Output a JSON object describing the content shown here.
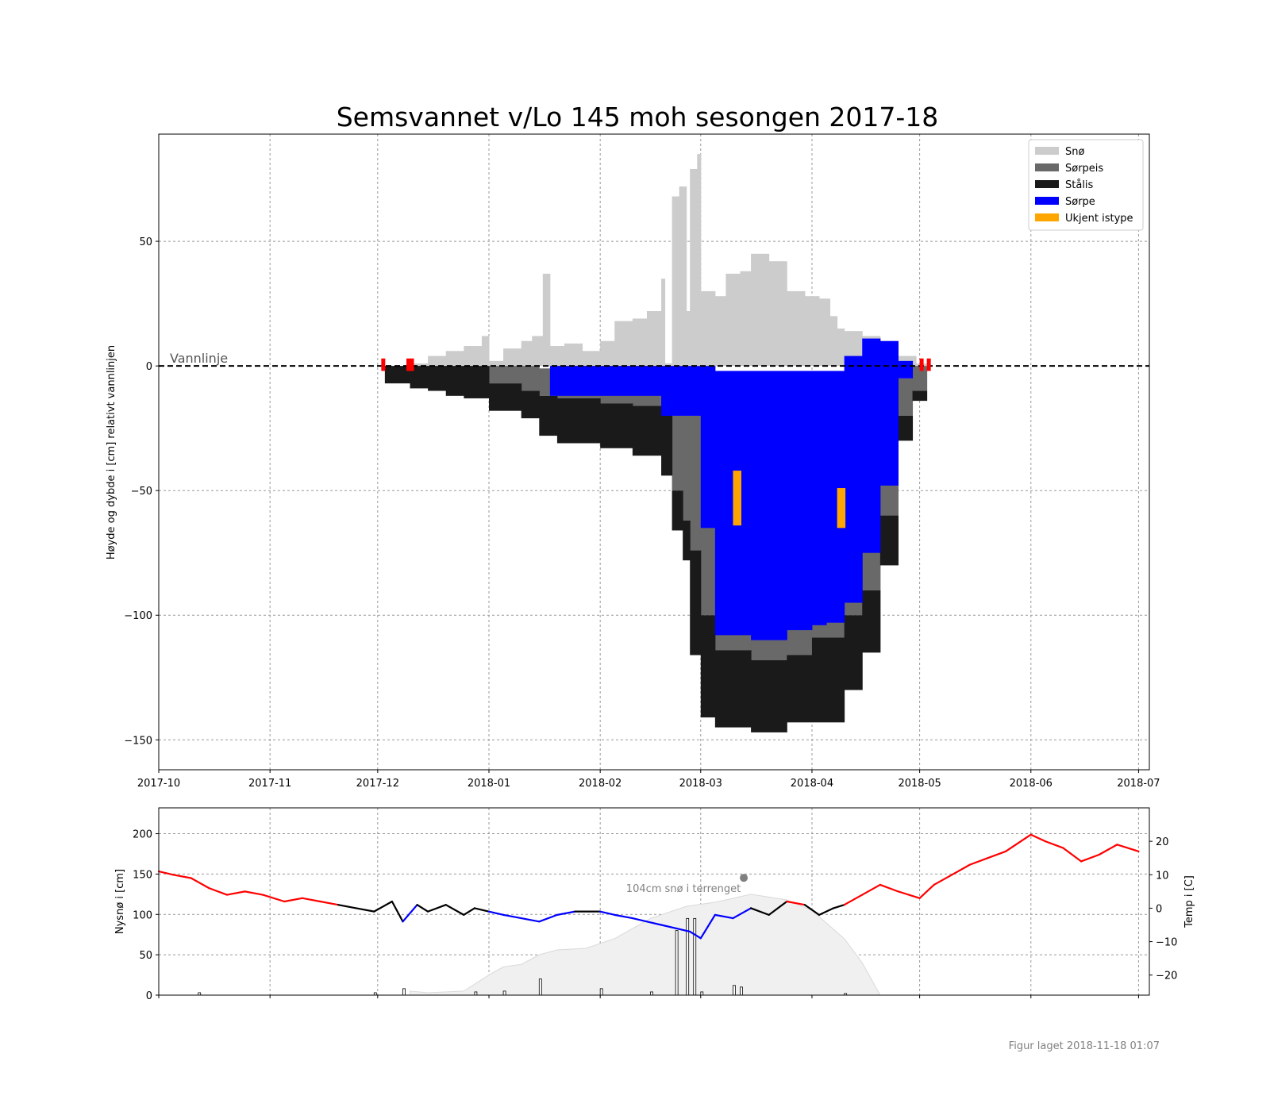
{
  "chart_data": [
    {
      "type": "bar",
      "title": "Semsvannet v/Lo 145 moh sesongen 2017-18",
      "ylabel": "Høyde og dybde i [cm] relativt vannlinjen",
      "xlabel": "",
      "x_ticks": [
        "2017-10",
        "2017-11",
        "2017-12",
        "2018-01",
        "2018-02",
        "2018-03",
        "2018-04",
        "2018-05",
        "2018-06",
        "2018-07"
      ],
      "y_ticks": [
        50,
        0,
        -50,
        -100,
        -150
      ],
      "xlim": [
        "2017-10-01",
        "2018-07-04"
      ],
      "ylim": [
        -162,
        93
      ],
      "grid": true,
      "legend_position": "top-right",
      "legend": [
        {
          "name": "Snø",
          "color": "#cccccc"
        },
        {
          "name": "Sørpeis",
          "color": "#696969"
        },
        {
          "name": "Stålis",
          "color": "#1a1a1a"
        },
        {
          "name": "Sørpe",
          "color": "#0000ff"
        },
        {
          "name": "Ukjent istype",
          "color": "#ffa500"
        }
      ],
      "annotations": {
        "waterline_label": "Vannlinje",
        "red_markers": [
          "2017-12-02",
          "2017-12-09",
          "2017-12-10",
          "2018-05-01",
          "2018-05-03"
        ]
      },
      "series": [
        {
          "name": "Snø",
          "points": [
            [
              "2017-12-03",
              0,
              0
            ],
            [
              "2017-12-10",
              0,
              1
            ],
            [
              "2017-12-15",
              0,
              4
            ],
            [
              "2017-12-20",
              0,
              6
            ],
            [
              "2017-12-25",
              0,
              8
            ],
            [
              "2017-12-30",
              0,
              12
            ],
            [
              "2018-01-01",
              0,
              2
            ],
            [
              "2018-01-05",
              0,
              7
            ],
            [
              "2018-01-10",
              0,
              10
            ],
            [
              "2018-01-13",
              0,
              12
            ],
            [
              "2018-01-15",
              0,
              12
            ],
            [
              "2018-01-16",
              0,
              37
            ],
            [
              "2018-01-18",
              0,
              8
            ],
            [
              "2018-01-22",
              0,
              9
            ],
            [
              "2018-01-27",
              0,
              6
            ],
            [
              "2018-02-01",
              0,
              10
            ],
            [
              "2018-02-05",
              0,
              18
            ],
            [
              "2018-02-10",
              0,
              19
            ],
            [
              "2018-02-14",
              0,
              22
            ],
            [
              "2018-02-18",
              0,
              35
            ],
            [
              "2018-02-19",
              0,
              1
            ],
            [
              "2018-02-21",
              0,
              68
            ],
            [
              "2018-02-23",
              0,
              72
            ],
            [
              "2018-02-25",
              0,
              22
            ],
            [
              "2018-02-26",
              0,
              79
            ],
            [
              "2018-02-28",
              0,
              85
            ],
            [
              "2018-03-01",
              0,
              30
            ],
            [
              "2018-03-05",
              0,
              28
            ],
            [
              "2018-03-08",
              0,
              37
            ],
            [
              "2018-03-12",
              0,
              38
            ],
            [
              "2018-03-15",
              0,
              45
            ],
            [
              "2018-03-20",
              0,
              42
            ],
            [
              "2018-03-25",
              0,
              30
            ],
            [
              "2018-03-30",
              0,
              28
            ],
            [
              "2018-04-03",
              0,
              27
            ],
            [
              "2018-04-06",
              0,
              20
            ],
            [
              "2018-04-08",
              0,
              15
            ],
            [
              "2018-04-10",
              0,
              14
            ],
            [
              "2018-04-15",
              0,
              12
            ],
            [
              "2018-04-20",
              0,
              8
            ],
            [
              "2018-04-25",
              0,
              4
            ],
            [
              "2018-04-30",
              0,
              1
            ]
          ]
        },
        {
          "name": "Sørpeis",
          "points": [
            [
              "2018-01-01",
              0,
              -7
            ],
            [
              "2018-01-10",
              0,
              -10
            ],
            [
              "2018-01-15",
              -1,
              -12
            ],
            [
              "2018-01-20",
              0,
              -13
            ],
            [
              "2018-02-01",
              0,
              -15
            ],
            [
              "2018-02-10",
              0,
              -16
            ],
            [
              "2018-02-18",
              0,
              -18
            ],
            [
              "2018-02-21",
              -20,
              -50
            ],
            [
              "2018-02-24",
              -20,
              -62
            ],
            [
              "2018-02-26",
              -20,
              -74
            ],
            [
              "2018-03-01",
              -25,
              -100
            ],
            [
              "2018-03-05",
              -25,
              -114
            ],
            [
              "2018-03-15",
              -25,
              -118
            ],
            [
              "2018-03-25",
              -25,
              -116
            ],
            [
              "2018-04-01",
              -25,
              -109
            ],
            [
              "2018-04-10",
              -25,
              -100
            ],
            [
              "2018-04-15",
              -25,
              -90
            ],
            [
              "2018-04-20",
              -25,
              -60
            ],
            [
              "2018-04-25",
              -5,
              -20
            ],
            [
              "2018-04-29",
              0,
              -10
            ]
          ]
        },
        {
          "name": "Stålis",
          "points": [
            [
              "2017-12-03",
              0,
              -7
            ],
            [
              "2017-12-10",
              0,
              -9
            ],
            [
              "2017-12-15",
              0,
              -10
            ],
            [
              "2017-12-20",
              0,
              -12
            ],
            [
              "2017-12-25",
              0,
              -13
            ],
            [
              "2018-01-01",
              -7,
              -18
            ],
            [
              "2018-01-10",
              -10,
              -21
            ],
            [
              "2018-01-15",
              -12,
              -28
            ],
            [
              "2018-01-20",
              -13,
              -31
            ],
            [
              "2018-02-01",
              -15,
              -33
            ],
            [
              "2018-02-10",
              -16,
              -36
            ],
            [
              "2018-02-18",
              -18,
              -44
            ],
            [
              "2018-02-21",
              -50,
              -66
            ],
            [
              "2018-02-24",
              -62,
              -78
            ],
            [
              "2018-02-26",
              -74,
              -116
            ],
            [
              "2018-03-01",
              -100,
              -141
            ],
            [
              "2018-03-05",
              -114,
              -145
            ],
            [
              "2018-03-15",
              -118,
              -147
            ],
            [
              "2018-03-25",
              -116,
              -143
            ],
            [
              "2018-04-01",
              -109,
              -143
            ],
            [
              "2018-04-10",
              -100,
              -130
            ],
            [
              "2018-04-15",
              -90,
              -115
            ],
            [
              "2018-04-20",
              -60,
              -80
            ],
            [
              "2018-04-25",
              -20,
              -30
            ],
            [
              "2018-04-29",
              -10,
              -14
            ]
          ]
        },
        {
          "name": "Sørpe",
          "points": [
            [
              "2018-01-18",
              0,
              -12
            ],
            [
              "2018-02-18",
              0,
              -20
            ],
            [
              "2018-02-21",
              0,
              -20
            ],
            [
              "2018-03-01",
              0,
              -65
            ],
            [
              "2018-03-05",
              -2,
              -108
            ],
            [
              "2018-03-15",
              -2,
              -110
            ],
            [
              "2018-03-25",
              -2,
              -106
            ],
            [
              "2018-04-01",
              -2,
              -104
            ],
            [
              "2018-04-05",
              -2,
              -103
            ],
            [
              "2018-04-10",
              4,
              -95
            ],
            [
              "2018-04-15",
              11,
              -75
            ],
            [
              "2018-04-20",
              10,
              -48
            ],
            [
              "2018-04-25",
              2,
              -5
            ]
          ]
        },
        {
          "name": "Ukjent istype",
          "points": [
            [
              "2018-03-10",
              -42,
              -64
            ],
            [
              "2018-04-08",
              -49,
              -65
            ]
          ]
        }
      ]
    },
    {
      "type": "line",
      "ylabel": "Nysnø i [cm]",
      "y2label": "Temp i [C]",
      "x_ticks": [
        "2017-10",
        "2017-11",
        "2017-12",
        "2018-01",
        "2018-02",
        "2018-03",
        "2018-04",
        "2018-05",
        "2018-06",
        "2018-07"
      ],
      "y_ticks": [
        0,
        50,
        100,
        150,
        200
      ],
      "y2_ticks": [
        20,
        10,
        0,
        -10,
        -20
      ],
      "ylim": [
        0,
        232
      ],
      "y2lim": [
        -26,
        30
      ],
      "grid": true,
      "annotation": "104cm snø i terrenget",
      "annotation_point": [
        "2018-03-13",
        104
      ],
      "series": [
        {
          "name": "Temperatur",
          "colors": {
            "warm": "#ff0000",
            "neutral": "#000000",
            "cold": "#0000ff"
          },
          "x": [
            "2017-10-01",
            "2017-10-05",
            "2017-10-10",
            "2017-10-15",
            "2017-10-20",
            "2017-10-25",
            "2017-10-30",
            "2017-11-05",
            "2017-11-10",
            "2017-11-15",
            "2017-11-20",
            "2017-11-25",
            "2017-11-30",
            "2017-12-05",
            "2017-12-08",
            "2017-12-12",
            "2017-12-15",
            "2017-12-20",
            "2017-12-25",
            "2017-12-28",
            "2018-01-01",
            "2018-01-05",
            "2018-01-10",
            "2018-01-15",
            "2018-01-20",
            "2018-01-25",
            "2018-02-01",
            "2018-02-05",
            "2018-02-10",
            "2018-02-14",
            "2018-02-18",
            "2018-02-22",
            "2018-02-26",
            "2018-03-01",
            "2018-03-05",
            "2018-03-10",
            "2018-03-15",
            "2018-03-20",
            "2018-03-25",
            "2018-03-30",
            "2018-04-03",
            "2018-04-07",
            "2018-04-10",
            "2018-04-15",
            "2018-04-20",
            "2018-04-25",
            "2018-05-01",
            "2018-05-05",
            "2018-05-10",
            "2018-05-15",
            "2018-05-20",
            "2018-05-25",
            "2018-06-01",
            "2018-06-05",
            "2018-06-10",
            "2018-06-15",
            "2018-06-20",
            "2018-06-25",
            "2018-07-01"
          ],
          "values": [
            11,
            10,
            9,
            6,
            4,
            5,
            4,
            2,
            3,
            2,
            1,
            0,
            -1,
            2,
            -4,
            1,
            -1,
            1,
            -2,
            0,
            -1,
            -2,
            -3,
            -4,
            -2,
            -1,
            -1,
            -2,
            -3,
            -4,
            -5,
            -6,
            -7,
            -9,
            -2,
            -3,
            0,
            -2,
            2,
            1,
            -2,
            0,
            1,
            4,
            7,
            5,
            3,
            7,
            10,
            13,
            15,
            17,
            22,
            20,
            18,
            14,
            16,
            19,
            17
          ]
        },
        {
          "name": "Snø i terrenget",
          "color": "#f0f0f0",
          "x": [
            "2017-12-10",
            "2017-12-15",
            "2017-12-25",
            "2018-01-01",
            "2018-01-05",
            "2018-01-10",
            "2018-01-15",
            "2018-01-20",
            "2018-01-28",
            "2018-02-05",
            "2018-02-15",
            "2018-02-25",
            "2018-03-05",
            "2018-03-15",
            "2018-03-25",
            "2018-04-01",
            "2018-04-10",
            "2018-04-15",
            "2018-04-20"
          ],
          "values": [
            5,
            3,
            5,
            25,
            35,
            38,
            50,
            56,
            58,
            70,
            95,
            110,
            115,
            125,
            118,
            105,
            70,
            40,
            0
          ]
        },
        {
          "name": "Nysnø",
          "x": [
            "2017-10-12",
            "2017-11-30",
            "2017-12-08",
            "2017-12-28",
            "2018-01-05",
            "2018-01-15",
            "2018-02-01",
            "2018-02-15",
            "2018-02-22",
            "2018-02-25",
            "2018-02-27",
            "2018-03-01",
            "2018-03-10",
            "2018-03-12",
            "2018-04-10"
          ],
          "values": [
            3,
            3,
            8,
            4,
            5,
            20,
            8,
            4,
            80,
            95,
            95,
            4,
            12,
            10,
            2
          ]
        }
      ]
    }
  ],
  "footer": "Figur laget 2018-11-18 01:07"
}
